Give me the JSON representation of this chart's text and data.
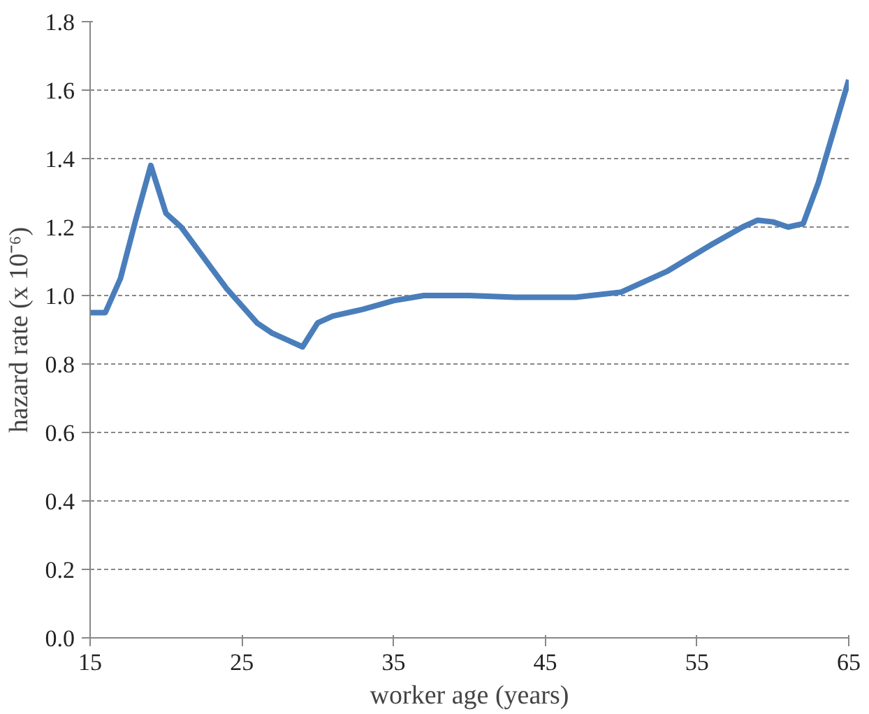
{
  "chart_data": {
    "type": "line",
    "xlabel": "worker age (years)",
    "ylabel": "hazard rate (x 10⁻⁶)",
    "series": [
      {
        "color": "#4a7ebb",
        "x": [
          15,
          16,
          17,
          18,
          19,
          20,
          21,
          22,
          23,
          24,
          25,
          26,
          27,
          28,
          29,
          30,
          31,
          33,
          35,
          37,
          40,
          43,
          47,
          50,
          53,
          56,
          58,
          59,
          60,
          61,
          62,
          63,
          64,
          65
        ],
        "values": [
          0.95,
          0.95,
          1.05,
          1.22,
          1.38,
          1.24,
          1.2,
          1.14,
          1.08,
          1.02,
          0.97,
          0.92,
          0.89,
          0.87,
          0.85,
          0.92,
          0.94,
          0.96,
          0.985,
          1.0,
          1.0,
          0.995,
          0.995,
          1.01,
          1.07,
          1.15,
          1.2,
          1.22,
          1.215,
          1.2,
          1.21,
          1.33,
          1.48,
          1.63
        ]
      }
    ],
    "xlim": [
      15,
      65
    ],
    "xticks": [
      15,
      25,
      35,
      45,
      55,
      65
    ],
    "ylim": [
      0,
      1.8
    ],
    "yticks": [
      {
        "value": 0,
        "label": "0.0"
      },
      {
        "value": 0.2,
        "label": "0.2"
      },
      {
        "value": 0.4,
        "label": "0.4"
      },
      {
        "value": 0.6,
        "label": "0.6"
      },
      {
        "value": 0.8,
        "label": "0.8"
      },
      {
        "value": 1.0,
        "label": "1.0"
      },
      {
        "value": 1.2,
        "label": "1.2"
      },
      {
        "value": 1.4,
        "label": "1.4"
      },
      {
        "value": 1.6,
        "label": "1.6"
      },
      {
        "value": 1.8,
        "label": "1.8"
      }
    ],
    "grid": "y",
    "line_style": "solid"
  }
}
